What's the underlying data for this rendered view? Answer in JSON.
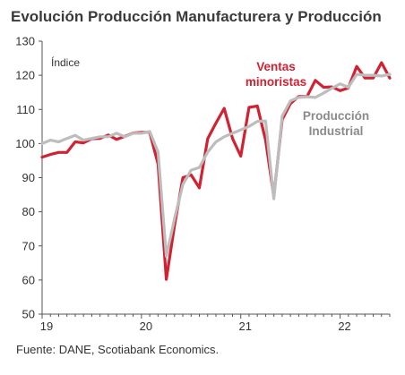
{
  "chart_data": {
    "type": "line",
    "title": "Evolución Producción Manufacturera y Producción",
    "ylabel": "Índice",
    "xlabel": "",
    "ylim": [
      50,
      130
    ],
    "yticks": [
      50,
      60,
      70,
      80,
      90,
      100,
      110,
      120,
      130
    ],
    "xlim": [
      19,
      22.5
    ],
    "xticks": [
      19,
      20,
      21,
      22
    ],
    "xtick_labels": [
      "19",
      "20",
      "21",
      "22"
    ],
    "grid": false,
    "source": "Fuente: DANE, Scotiabank Economics.",
    "series": [
      {
        "name": "Ventas minoristas",
        "color": "#d22232",
        "x": [
          19.0,
          19.083,
          19.167,
          19.25,
          19.333,
          19.417,
          19.5,
          19.583,
          19.667,
          19.75,
          19.833,
          19.917,
          20.0,
          20.083,
          20.167,
          20.25,
          20.333,
          20.417,
          20.5,
          20.583,
          20.667,
          20.75,
          20.833,
          20.917,
          21.0,
          21.083,
          21.167,
          21.25,
          21.333,
          21.417,
          21.5,
          21.583,
          21.667,
          21.75,
          21.833,
          21.917,
          22.0,
          22.083,
          22.167,
          22.25,
          22.333,
          22.417,
          22.5
        ],
        "values": [
          96,
          96.8,
          97.4,
          97.4,
          100.5,
          100.2,
          101.4,
          101.5,
          102.5,
          101.2,
          102.1,
          103.1,
          103.3,
          103.3,
          94,
          60.2,
          76,
          90,
          90.8,
          87,
          101.4,
          106,
          110.3,
          101.5,
          96.3,
          110.6,
          111,
          101,
          84.5,
          107,
          111.7,
          113.8,
          113.8,
          118.5,
          116.5,
          116.6,
          115.5,
          116.3,
          122.6,
          119.2,
          119.2,
          123.7,
          119.2
        ]
      },
      {
        "name": "Producción Industrial",
        "color": "#bdbdbd",
        "x": [
          19.0,
          19.083,
          19.167,
          19.25,
          19.333,
          19.417,
          19.5,
          19.583,
          19.667,
          19.75,
          19.833,
          19.917,
          20.0,
          20.083,
          20.167,
          20.25,
          20.333,
          20.417,
          20.5,
          20.583,
          20.667,
          20.75,
          20.833,
          20.917,
          21.0,
          21.083,
          21.167,
          21.25,
          21.333,
          21.417,
          21.5,
          21.583,
          21.667,
          21.75,
          21.833,
          21.917,
          22.0,
          22.083,
          22.167,
          22.25,
          22.333,
          22.417,
          22.5
        ],
        "values": [
          100,
          101,
          100.5,
          101.5,
          102.4,
          101,
          101.5,
          102,
          102,
          103,
          102,
          103,
          103,
          103.5,
          97.5,
          67,
          78,
          88,
          92.2,
          93,
          97.5,
          100.5,
          102,
          103,
          104,
          105,
          106.5,
          106.6,
          83.8,
          108,
          112.5,
          113.5,
          113.7,
          113.5,
          114.8,
          116.2,
          117.5,
          116.5,
          120.3,
          120,
          120,
          119.8,
          120.3
        ]
      }
    ],
    "annotations": [
      {
        "series": "Ventas minoristas",
        "lines": [
          "Ventas",
          "minoristas"
        ],
        "color": "#d22232"
      },
      {
        "series": "Producción Industrial",
        "lines": [
          "Producción",
          "Industrial"
        ],
        "color": "#8a8a8a"
      }
    ]
  }
}
